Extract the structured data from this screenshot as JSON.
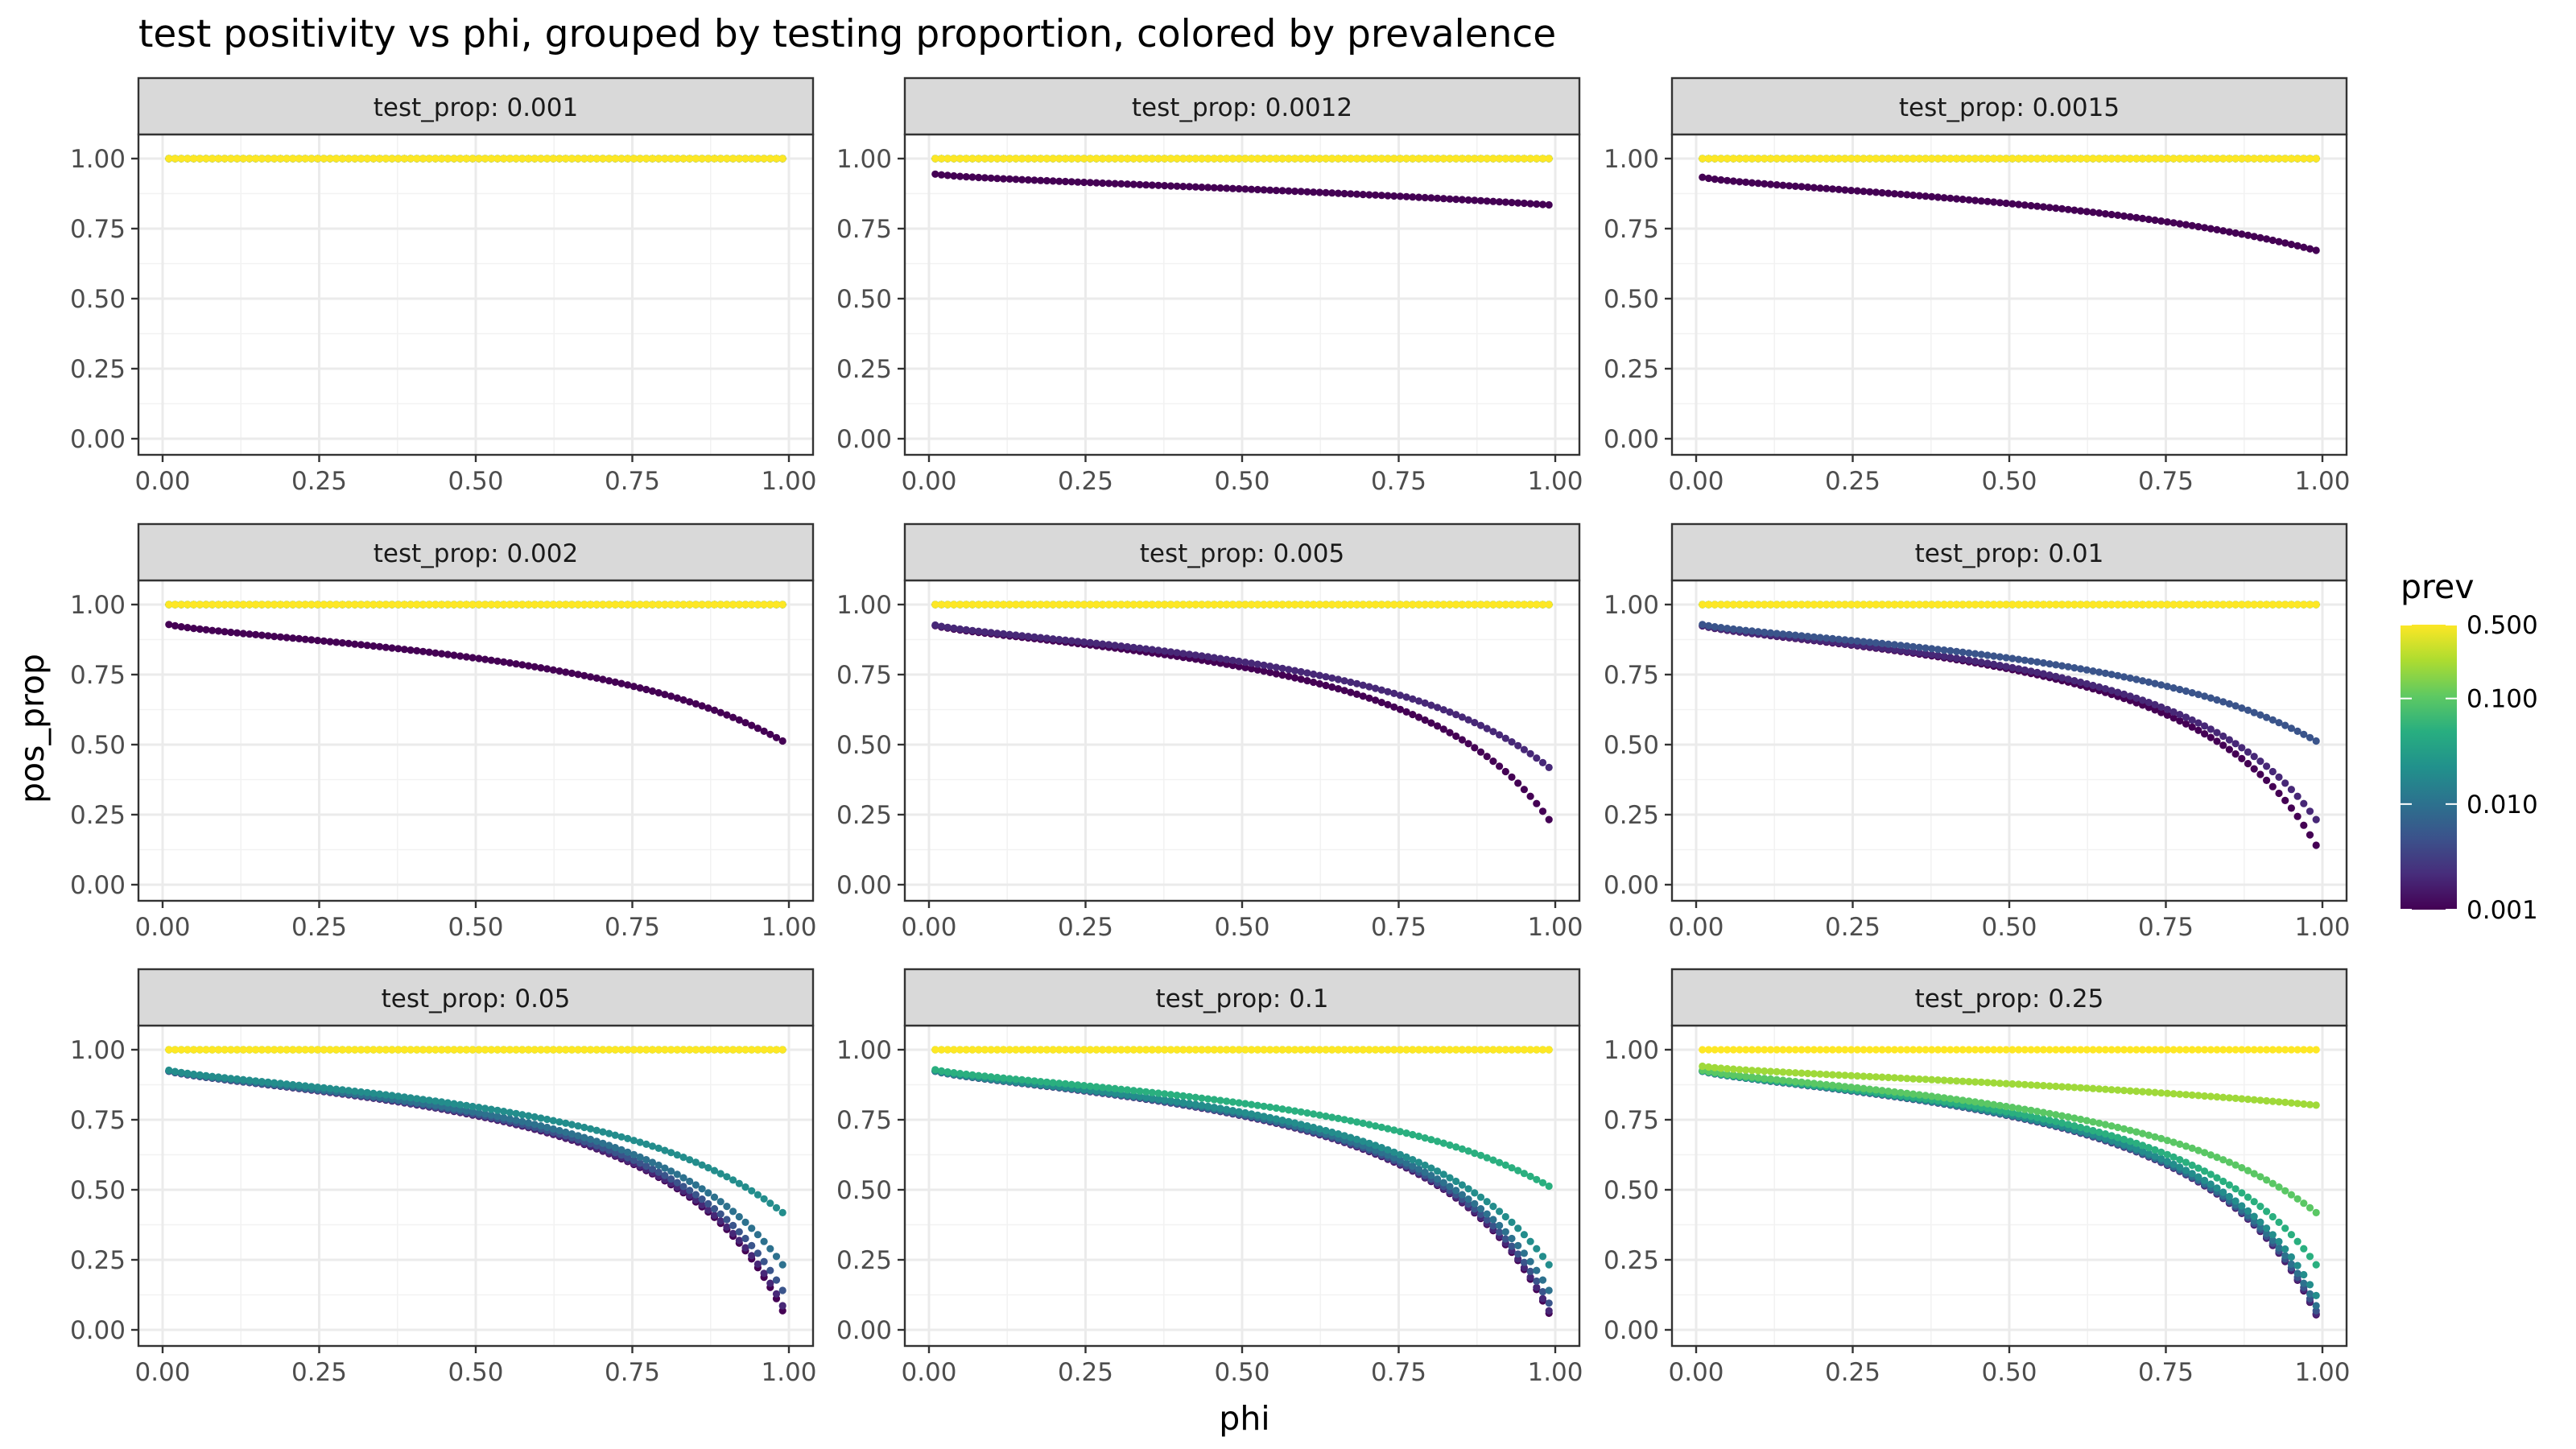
{
  "chart_data": {
    "type": "scatter",
    "title": "test positivity vs phi, grouped by testing proportion, colored by prevalence",
    "xlabel": "phi",
    "ylabel": "pos_prop",
    "xlim": [
      0,
      1
    ],
    "ylim": [
      0,
      1
    ],
    "x_ticks": [
      "0.00",
      "0.25",
      "0.50",
      "0.75",
      "1.00"
    ],
    "y_ticks": [
      "0.00",
      "0.25",
      "0.50",
      "0.75",
      "1.00"
    ],
    "facet_prefix": "test_prop: ",
    "grid": true,
    "legend": {
      "title": "prev",
      "position": "right",
      "scale": "log10",
      "range": [
        0.001,
        0.5
      ],
      "ticks": [
        "0.500",
        "0.100",
        "0.010",
        "0.001"
      ],
      "tick_values": [
        0.5,
        0.1,
        0.01,
        0.001
      ]
    },
    "colormap": [
      "#440154",
      "#472d7b",
      "#3b528b",
      "#2c728e",
      "#21918c",
      "#28ae80",
      "#5ec962",
      "#addc30",
      "#fde725"
    ],
    "prevalences": [
      0.001,
      0.002,
      0.005,
      0.01,
      0.02,
      0.05,
      0.1,
      0.2,
      0.5
    ],
    "phi_points": 100,
    "phi_range": [
      0.01,
      0.99
    ],
    "facets": [
      {
        "test_prop": "0.001"
      },
      {
        "test_prop": "0.0012"
      },
      {
        "test_prop": "0.0015"
      },
      {
        "test_prop": "0.002"
      },
      {
        "test_prop": "0.005"
      },
      {
        "test_prop": "0.01"
      },
      {
        "test_prop": "0.05"
      },
      {
        "test_prop": "0.1"
      },
      {
        "test_prop": "0.25"
      }
    ]
  }
}
